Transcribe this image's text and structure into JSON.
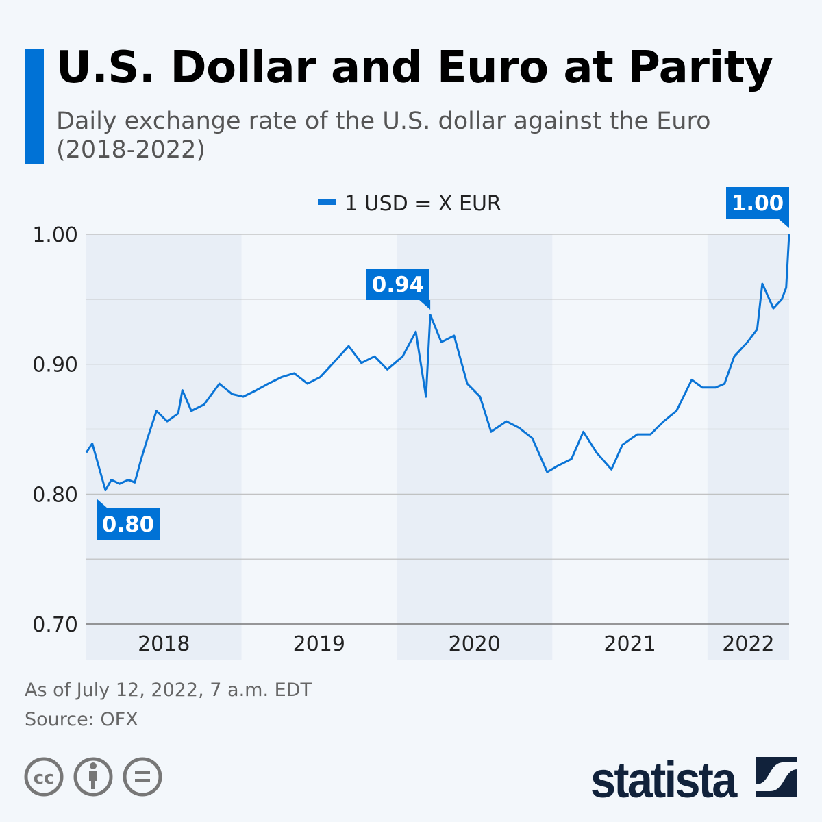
{
  "header": {
    "title": "U.S. Dollar and Euro at Parity",
    "subtitle": "Daily exchange rate of the U.S. dollar against the Euro (2018-2022)"
  },
  "colors": {
    "accent": "#0072d6",
    "line": "#0a74d6",
    "band": "#e8eef6",
    "text": "#222222",
    "logo": "#11223b"
  },
  "chart_data": {
    "type": "line",
    "title": "U.S. Dollar and Euro at Parity",
    "legend": {
      "position": "top",
      "entries": [
        "1 USD = X EUR"
      ]
    },
    "ylim": [
      0.7,
      1.0
    ],
    "yticks": [
      0.7,
      0.75,
      0.8,
      0.85,
      0.9,
      0.95,
      1.0
    ],
    "ytick_labels": [
      "0.70",
      "0.80",
      "0.90",
      "1.00"
    ],
    "xlim": [
      "2018-01-01",
      "2022-07-12"
    ],
    "xtick_labels": [
      "2018",
      "2019",
      "2020",
      "2021",
      "2022"
    ],
    "grid": true,
    "series": [
      {
        "name": "1 USD = X EUR",
        "x": [
          "2018-01-01",
          "2018-01-15",
          "2018-02-15",
          "2018-03-01",
          "2018-03-20",
          "2018-04-10",
          "2018-04-25",
          "2018-05-10",
          "2018-05-25",
          "2018-06-15",
          "2018-07-10",
          "2018-08-05",
          "2018-08-15",
          "2018-09-05",
          "2018-10-05",
          "2018-11-10",
          "2018-12-10",
          "2019-01-05",
          "2019-02-05",
          "2019-03-05",
          "2019-04-05",
          "2019-05-05",
          "2019-06-05",
          "2019-07-05",
          "2019-08-05",
          "2019-09-10",
          "2019-10-10",
          "2019-11-10",
          "2019-12-10",
          "2020-01-15",
          "2020-02-15",
          "2020-03-10",
          "2020-03-20",
          "2020-04-15",
          "2020-05-15",
          "2020-06-15",
          "2020-07-15",
          "2020-08-10",
          "2020-09-15",
          "2020-10-15",
          "2020-11-15",
          "2020-12-20",
          "2021-01-15",
          "2021-02-15",
          "2021-03-15",
          "2021-04-15",
          "2021-05-20",
          "2021-06-15",
          "2021-07-20",
          "2021-08-20",
          "2021-09-20",
          "2021-10-20",
          "2021-11-25",
          "2021-12-20",
          "2022-01-20",
          "2022-02-10",
          "2022-03-05",
          "2022-04-05",
          "2022-04-28",
          "2022-05-10",
          "2022-06-05",
          "2022-06-25",
          "2022-07-05",
          "2022-07-12"
        ],
        "values": [
          0.832,
          0.839,
          0.803,
          0.811,
          0.808,
          0.811,
          0.809,
          0.827,
          0.843,
          0.864,
          0.856,
          0.862,
          0.88,
          0.864,
          0.869,
          0.885,
          0.877,
          0.875,
          0.88,
          0.885,
          0.89,
          0.893,
          0.885,
          0.89,
          0.901,
          0.914,
          0.901,
          0.906,
          0.896,
          0.906,
          0.925,
          0.875,
          0.938,
          0.917,
          0.922,
          0.885,
          0.875,
          0.848,
          0.856,
          0.851,
          0.843,
          0.817,
          0.822,
          0.827,
          0.848,
          0.832,
          0.819,
          0.838,
          0.846,
          0.846,
          0.856,
          0.864,
          0.888,
          0.882,
          0.882,
          0.885,
          0.906,
          0.917,
          0.927,
          0.962,
          0.943,
          0.95,
          0.959,
          1.0
        ]
      }
    ],
    "annotations": [
      {
        "label": "0.80",
        "x": "2018-02-15",
        "value": 0.8
      },
      {
        "label": "0.94",
        "x": "2020-03-20",
        "value": 0.94
      },
      {
        "label": "1.00",
        "x": "2022-07-12",
        "value": 1.0
      }
    ]
  },
  "footer": {
    "as_of": "As of July 12, 2022, 7 a.m. EDT",
    "source": "Source: OFX",
    "license_icons": [
      "creative-commons-icon",
      "attribution-icon",
      "no-derivatives-icon"
    ],
    "brand": "statista"
  }
}
